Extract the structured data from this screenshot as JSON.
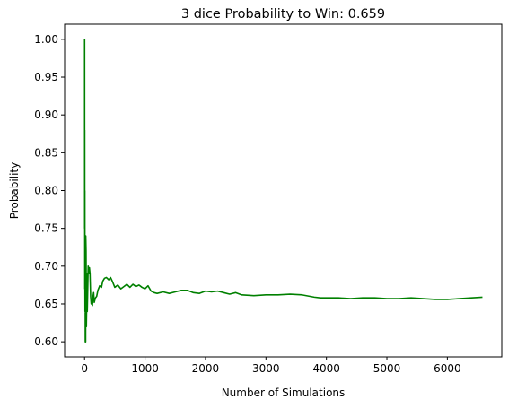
{
  "chart_data": {
    "type": "line",
    "title": "3 dice Probability to Win: 0.659",
    "xlabel": "Number of Simulations",
    "ylabel": "Probability",
    "xlim": [
      -330,
      6900
    ],
    "ylim": [
      0.58,
      1.02
    ],
    "xticks": [
      0,
      1000,
      2000,
      3000,
      4000,
      5000,
      6000
    ],
    "yticks": [
      0.6,
      0.65,
      0.7,
      0.75,
      0.8,
      0.85,
      0.9,
      0.95,
      1.0
    ],
    "xtick_labels": [
      "0",
      "1000",
      "2000",
      "3000",
      "4000",
      "5000",
      "6000"
    ],
    "ytick_labels": [
      "0.60",
      "0.65",
      "0.70",
      "0.75",
      "0.80",
      "0.85",
      "0.90",
      "0.95",
      "1.00"
    ],
    "grid": false,
    "series": [
      {
        "color": "#008000",
        "x": [
          1,
          2,
          3,
          4,
          5,
          6,
          8,
          10,
          12,
          15,
          18,
          20,
          25,
          30,
          35,
          40,
          45,
          50,
          55,
          60,
          70,
          80,
          90,
          100,
          110,
          120,
          130,
          140,
          150,
          160,
          180,
          200,
          220,
          250,
          280,
          300,
          330,
          360,
          400,
          430,
          460,
          500,
          550,
          600,
          650,
          700,
          750,
          800,
          850,
          900,
          950,
          1000,
          1050,
          1100,
          1150,
          1200,
          1300,
          1400,
          1500,
          1600,
          1700,
          1800,
          1900,
          2000,
          2100,
          2200,
          2300,
          2400,
          2500,
          2600,
          2800,
          3000,
          3200,
          3400,
          3600,
          3800,
          3900,
          4000,
          4200,
          4400,
          4600,
          4800,
          5000,
          5200,
          5400,
          5600,
          5800,
          6000,
          6200,
          6400,
          6580
        ],
        "y": [
          1.0,
          0.75,
          0.88,
          0.67,
          0.8,
          0.7,
          0.64,
          0.72,
          0.6,
          0.72,
          0.6,
          0.74,
          0.72,
          0.62,
          0.65,
          0.69,
          0.64,
          0.66,
          0.68,
          0.7,
          0.69,
          0.698,
          0.69,
          0.66,
          0.65,
          0.655,
          0.648,
          0.66,
          0.665,
          0.652,
          0.658,
          0.66,
          0.668,
          0.674,
          0.672,
          0.68,
          0.684,
          0.685,
          0.682,
          0.685,
          0.68,
          0.672,
          0.675,
          0.67,
          0.673,
          0.676,
          0.672,
          0.676,
          0.673,
          0.675,
          0.672,
          0.67,
          0.674,
          0.667,
          0.665,
          0.664,
          0.666,
          0.664,
          0.666,
          0.668,
          0.668,
          0.665,
          0.664,
          0.667,
          0.666,
          0.667,
          0.665,
          0.663,
          0.665,
          0.662,
          0.661,
          0.662,
          0.662,
          0.663,
          0.662,
          0.659,
          0.658,
          0.658,
          0.658,
          0.657,
          0.658,
          0.658,
          0.657,
          0.657,
          0.658,
          0.657,
          0.656,
          0.656,
          0.657,
          0.658,
          0.659
        ]
      }
    ]
  }
}
